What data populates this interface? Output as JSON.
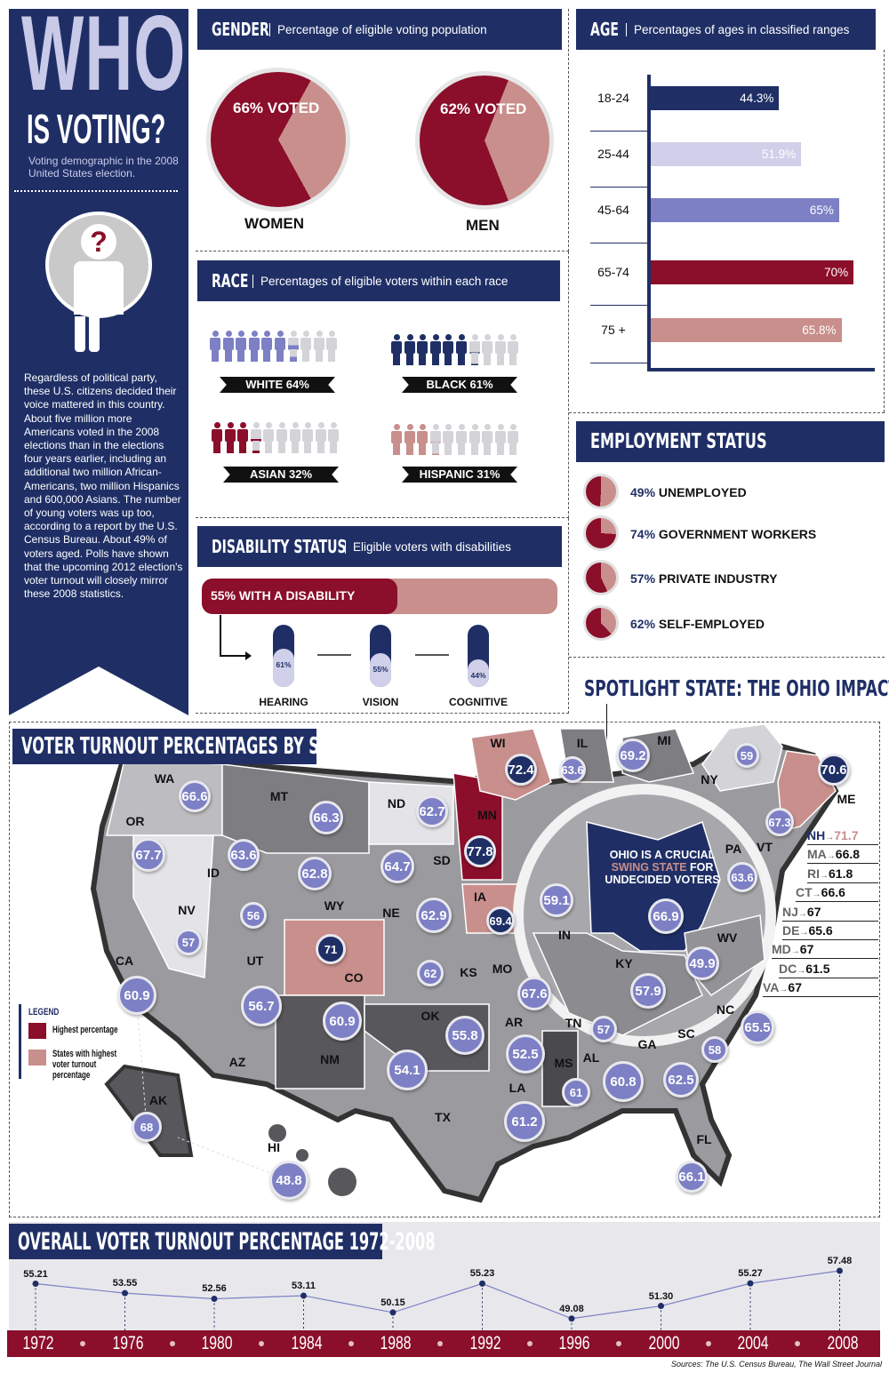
{
  "sidebar": {
    "title_big": "WHO",
    "title_small": "IS VOTING?",
    "subtitle": "Voting demographic in the 2008 United States election.",
    "icon": "question-person-icon",
    "body": "Regardless of political party, these U.S. citizens decided their voice mattered in this country. About five million more Americans voted in the 2008 elections than in the elections four years earlier, including an additional two million African-Americans, two million Hispanics and 600,000 Asians. The number of young voters was up too, according to a report by the U.S. Census Bureau. About 49% of voters aged. Polls have shown that the upcoming 2012 election's voter turnout will closely mirror these 2008 statistics."
  },
  "gender": {
    "title": "GENDER",
    "subtitle": "Percentage of eligible voting population",
    "items": [
      {
        "label": "WOMEN",
        "pct": 66,
        "text": "66% VOTED"
      },
      {
        "label": "MEN",
        "pct": 62,
        "text": "62% VOTED"
      }
    ]
  },
  "age": {
    "title": "AGE",
    "subtitle": "Percentages of ages in classified ranges",
    "chart_data": {
      "type": "bar",
      "orientation": "horizontal",
      "categories": [
        "18-24",
        "25-44",
        "45-64",
        "65-74",
        "75 +"
      ],
      "values": [
        44.3,
        51.9,
        65,
        70,
        65.8
      ],
      "value_labels": [
        "44.3%",
        "51.9%",
        "65%",
        "70%",
        "65.8%"
      ],
      "colors": [
        "#1f2f66",
        "#d0d0ea",
        "#7d80c4",
        "#8b0e2a",
        "#c98f8c"
      ]
    }
  },
  "race": {
    "title": "RACE",
    "subtitle": "Percentages of eligible voters within each race",
    "items": [
      {
        "label": "WHITE 64%",
        "pct": 64,
        "color": "#7d80c4"
      },
      {
        "label": "BLACK 61%",
        "pct": 61,
        "color": "#1f2f66"
      },
      {
        "label": "ASIAN 32%",
        "pct": 32,
        "color": "#8b0e2a"
      },
      {
        "label": "HISPANIC 31%",
        "pct": 31,
        "color": "#c98f8c"
      }
    ]
  },
  "employment": {
    "title": "EMPLOYMENT STATUS",
    "items": [
      {
        "pct_text": "49%",
        "label": "UNEMPLOYED",
        "pct": 49
      },
      {
        "pct_text": "74%",
        "label": "GOVERNMENT WORKERS",
        "pct": 74
      },
      {
        "pct_text": "57%",
        "label": "PRIVATE INDUSTRY",
        "pct": 57
      },
      {
        "pct_text": "62%",
        "label": "SELF-EMPLOYED",
        "pct": 62
      }
    ]
  },
  "disability": {
    "title": "DISABILITY STATUS",
    "subtitle": "Eligible voters with disabilities",
    "bar_label": "55% WITH A DISABILITY",
    "bar_pct": 55,
    "items": [
      {
        "label": "HEARING",
        "pct": 61,
        "text": "61%"
      },
      {
        "label": "VISION",
        "pct": 55,
        "text": "55%"
      },
      {
        "label": "COGNITIVE",
        "pct": 44,
        "text": "44%"
      }
    ]
  },
  "spotlight": {
    "title": "SPOTLIGHT STATE: THE OHIO IMPACT",
    "line1": "OHIO IS A CRUCIAL",
    "highlight": "SWING STATE",
    "line2_rest": " FOR",
    "line3": "UNDECIDED VOTERS"
  },
  "map": {
    "title": "VOTER TURNOUT PERCENTAGES BY STATE",
    "legend": {
      "title": "LEGEND",
      "items": [
        {
          "label": "Highest percentage",
          "color": "#8b0e2a"
        },
        {
          "label": "States with highest voter turnout percentage",
          "color": "#c98f8c"
        }
      ]
    },
    "states": [
      {
        "state": "WA",
        "value": "66.6"
      },
      {
        "state": "MT",
        "value": "66.3"
      },
      {
        "state": "ND",
        "value": "62.7"
      },
      {
        "state": "WI",
        "value": "72.4",
        "highlight": true
      },
      {
        "state": "IL",
        "value": "63.6"
      },
      {
        "state": "MI",
        "value": "69.2"
      },
      {
        "state": "NY",
        "value": "59"
      },
      {
        "state": "ME",
        "value": "70.6",
        "highlight": true
      },
      {
        "state": "VT",
        "value": "67.3"
      },
      {
        "state": "OR",
        "value": "67.7"
      },
      {
        "state": "ID",
        "value": "63.6"
      },
      {
        "state": "WY",
        "value": "62.8"
      },
      {
        "state": "SD",
        "value": "64.7"
      },
      {
        "state": "MN",
        "value": "77.8",
        "highlight": true
      },
      {
        "state": "PA",
        "value": "63.6"
      },
      {
        "state": "IA",
        "value": "69.4",
        "highlight": true
      },
      {
        "state": "IN",
        "value": "59.1"
      },
      {
        "state": "OH",
        "value": "66.9"
      },
      {
        "state": "NV",
        "value": "57"
      },
      {
        "state": "UT",
        "value": "56"
      },
      {
        "state": "NE",
        "value": "62.9"
      },
      {
        "state": "CO",
        "value": "71",
        "highlight": true
      },
      {
        "state": "WV",
        "value": "49.9"
      },
      {
        "state": "KS",
        "value": "62"
      },
      {
        "state": "MO",
        "value": "67.6"
      },
      {
        "state": "KY",
        "value": "57.9"
      },
      {
        "state": "CA",
        "value": "60.9"
      },
      {
        "state": "AZ",
        "value": "56.7"
      },
      {
        "state": "NM",
        "value": "60.9"
      },
      {
        "state": "OK",
        "value": "55.8"
      },
      {
        "state": "TN",
        "value": "57"
      },
      {
        "state": "NC",
        "value": "65.5"
      },
      {
        "state": "SC",
        "value": "58"
      },
      {
        "state": "AR",
        "value": "52.5"
      },
      {
        "state": "TX",
        "value": "54.1"
      },
      {
        "state": "MS",
        "value": "61"
      },
      {
        "state": "AL",
        "value": "60.8"
      },
      {
        "state": "GA",
        "value": "62.5"
      },
      {
        "state": "LA",
        "value": "61.2"
      },
      {
        "state": "AK",
        "value": "68"
      },
      {
        "state": "HI",
        "value": "48.8"
      },
      {
        "state": "FL",
        "value": "66.1"
      }
    ],
    "northeast": [
      {
        "state": "NH",
        "value": "71.7",
        "highlight": true
      },
      {
        "state": "MA",
        "value": "66.8"
      },
      {
        "state": "RI",
        "value": "61.8"
      },
      {
        "state": "CT",
        "value": "66.6"
      },
      {
        "state": "NJ",
        "value": "67"
      },
      {
        "state": "DE",
        "value": "65.6"
      },
      {
        "state": "MD",
        "value": "67"
      },
      {
        "state": "DC",
        "value": "61.5"
      },
      {
        "state": "VA",
        "value": "67"
      }
    ]
  },
  "chart_data": {
    "type": "line",
    "title": "OVERALL VOTER TURNOUT PERCENTAGE 1972-2008",
    "categories": [
      "1972",
      "1976",
      "1980",
      "1984",
      "1988",
      "1992",
      "1996",
      "2000",
      "2004",
      "2008"
    ],
    "values": [
      55.21,
      53.55,
      52.56,
      53.11,
      50.15,
      55.23,
      49.08,
      51.3,
      55.27,
      57.48
    ],
    "value_labels": [
      "55.21",
      "53.55",
      "52.56",
      "53.11",
      "50.15",
      "55.23",
      "49.08",
      "51.30",
      "55.27",
      "57.48"
    ],
    "color": "#7d80c4"
  },
  "sources": "Sources: The U.S. Census Bureau, The Wall Street Journal",
  "colors": {
    "navy": "#1f2f66",
    "crimson": "#8b0e2a",
    "rose": "#c98f8c",
    "periwinkle": "#7d80c4",
    "lavender": "#d0d0ea"
  }
}
